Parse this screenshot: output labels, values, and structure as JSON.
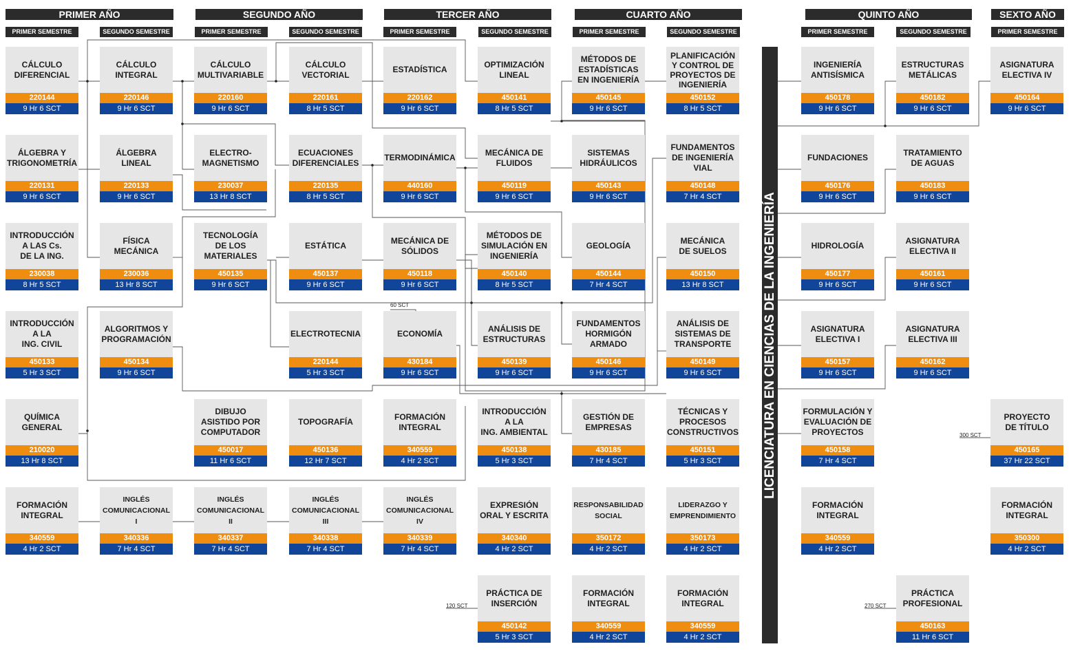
{
  "years": [
    {
      "label": "PRIMER AÑO"
    },
    {
      "label": "SEGUNDO AÑO"
    },
    {
      "label": "TERCER AÑO"
    },
    {
      "label": "CUARTO AÑO"
    },
    {
      "label": "QUINTO AÑO"
    },
    {
      "label": "SEXTO AÑO"
    }
  ],
  "semesters": [
    {
      "label": "PRIMER SEMESTRE"
    },
    {
      "label": "SEGUNDO SEMESTRE"
    },
    {
      "label": "PRIMER SEMESTRE"
    },
    {
      "label": "SEGUNDO SEMESTRE"
    },
    {
      "label": "PRIMER SEMESTRE"
    },
    {
      "label": "SEGUNDO SEMESTRE"
    },
    {
      "label": "PRIMER SEMESTRE"
    },
    {
      "label": "SEGUNDO SEMESTRE"
    },
    {
      "label": "PRIMER SEMESTRE"
    },
    {
      "label": "SEGUNDO SEMESTRE"
    },
    {
      "label": "PRIMER SEMESTRE"
    }
  ],
  "degree_label": "LICENCIATURA EN CIENCIAS DE LA INGENIERÍA",
  "notes": {
    "sct60": "60 SCT",
    "sct120": "120 SCT",
    "sct270": "270 SCT",
    "sct300": "300 SCT"
  },
  "colors": {
    "header": "#2b2b2b",
    "name_bg": "#e6e6e6",
    "code_bg": "#ef8d10",
    "hours_bg": "#11459a"
  },
  "courses": [
    {
      "name": "CÁLCULO\nDIFERENCIAL",
      "code": "220144",
      "hours": "9 Hr  6 SCT"
    },
    {
      "name": "ÁLGEBRA Y\nTRIGONOMETRÍA",
      "code": "220131",
      "hours": "9 Hr  6 SCT"
    },
    {
      "name": "INTRODUCCIÓN\nA LAS Cs.\nDE LA ING.",
      "code": "230038",
      "hours": "8 Hr  5 SCT"
    },
    {
      "name": "INTRODUCCIÓN\nA LA\nING. CIVIL",
      "code": "450133",
      "hours": "5 Hr  3 SCT"
    },
    {
      "name": "QUÍMICA\nGENERAL",
      "code": "210020",
      "hours": "13 Hr  8 SCT"
    },
    {
      "name": "FORMACIÓN\nINTEGRAL",
      "code": "340559",
      "hours": "4 Hr  2 SCT"
    },
    {
      "name": "CÁLCULO\nINTEGRAL",
      "code": "220146",
      "hours": "9 Hr  6 SCT"
    },
    {
      "name": "ÁLGEBRA\nLINEAL",
      "code": "220133",
      "hours": "9 Hr  6 SCT"
    },
    {
      "name": "FÍSICA\nMECÁNICA",
      "code": "230036",
      "hours": "13 Hr  8 SCT"
    },
    {
      "name": "ALGORITMOS Y\nPROGRAMACIÓN",
      "code": "450134",
      "hours": "9 Hr  6 SCT"
    },
    {
      "name": "INGLÉS\nCOMUNICACIONAL\nI",
      "code": "340336",
      "hours": "7 Hr  4 SCT"
    },
    {
      "name": "CÁLCULO\nMULTIVARIABLE",
      "code": "220160",
      "hours": "9 Hr  6 SCT"
    },
    {
      "name": "ELECTRO-\nMAGNETISMO",
      "code": "230037",
      "hours": "13 Hr  8 SCT"
    },
    {
      "name": "TECNOLOGÍA\nDE LOS\nMATERIALES",
      "code": "450135",
      "hours": "9 Hr  6 SCT"
    },
    {
      "name": "DIBUJO\nASISTIDO POR\nCOMPUTADOR",
      "code": "450017",
      "hours": "11 Hr  6 SCT"
    },
    {
      "name": "INGLÉS\nCOMUNICACIONAL\nII",
      "code": "340337",
      "hours": "7 Hr  4 SCT"
    },
    {
      "name": "CÁLCULO\nVECTORIAL",
      "code": "220161",
      "hours": "8 Hr  5 SCT"
    },
    {
      "name": "ECUACIONES\nDIFERENCIALES",
      "code": "220135",
      "hours": "8 Hr  5 SCT"
    },
    {
      "name": "ESTÁTICA",
      "code": "450137",
      "hours": "9 Hr  6 SCT"
    },
    {
      "name": "ELECTROTECNIA",
      "code": "220144",
      "hours": "5 Hr  3 SCT"
    },
    {
      "name": "TOPOGRAFÍA",
      "code": "450136",
      "hours": "12 Hr  7 SCT"
    },
    {
      "name": "INGLÉS\nCOMUNICACIONAL\nIII",
      "code": "340338",
      "hours": "7 Hr  4 SCT"
    },
    {
      "name": "ESTADÍSTICA",
      "code": "220162",
      "hours": "9 Hr  6 SCT"
    },
    {
      "name": "TERMODINÁMICA",
      "code": "440160",
      "hours": "9 Hr  6 SCT"
    },
    {
      "name": "MECÁNICA DE\nSÓLIDOS",
      "code": "450118",
      "hours": "9 Hr  6 SCT"
    },
    {
      "name": "ECONOMÍA",
      "code": "430184",
      "hours": "9 Hr  6 SCT"
    },
    {
      "name": "FORMACIÓN\nINTEGRAL",
      "code": "340559",
      "hours": "4 Hr  2 SCT"
    },
    {
      "name": "INGLÉS\nCOMUNICACIONAL\nIV",
      "code": "340339",
      "hours": "7 Hr  4 SCT"
    },
    {
      "name": "OPTIMIZACIÓN\nLINEAL",
      "code": "450141",
      "hours": "8 Hr  5 SCT"
    },
    {
      "name": "MECÁNICA DE\nFLUIDOS",
      "code": "450119",
      "hours": "9 Hr  6 SCT"
    },
    {
      "name": "MÉTODOS DE\nSIMULACIÓN EN\nINGENIERÍA",
      "code": "450140",
      "hours": "8 Hr  5 SCT"
    },
    {
      "name": "ANÁLISIS DE\nESTRUCTURAS",
      "code": "450139",
      "hours": "9 Hr  6 SCT"
    },
    {
      "name": "INTRODUCCIÓN\nA LA\nING. AMBIENTAL",
      "code": "450138",
      "hours": "5 Hr  3 SCT"
    },
    {
      "name": "EXPRESIÓN\nORAL Y ESCRITA",
      "code": "340340",
      "hours": "4 Hr  2 SCT"
    },
    {
      "name": "PRÁCTICA DE\nINSERCIÓN",
      "code": "450142",
      "hours": "5 Hr  3 SCT"
    },
    {
      "name": "MÉTODOS DE\nESTADÍSTICAS\nEN INGENIERÍA",
      "code": "450145",
      "hours": "9 Hr  6 SCT"
    },
    {
      "name": "SISTEMAS\nHIDRÁULICOS",
      "code": "450143",
      "hours": "9 Hr  6 SCT"
    },
    {
      "name": "GEOLOGÍA",
      "code": "450144",
      "hours": "7 Hr  4 SCT"
    },
    {
      "name": "FUNDAMENTOS\nHORMIGÓN\nARMADO",
      "code": "450146",
      "hours": "9 Hr  6 SCT"
    },
    {
      "name": "GESTIÓN DE\nEMPRESAS",
      "code": "430185",
      "hours": "7 Hr  4 SCT"
    },
    {
      "name": "RESPONSABILIDAD\nSOCIAL",
      "code": "350172",
      "hours": "4 Hr  2 SCT"
    },
    {
      "name": "FORMACIÓN\nINTEGRAL",
      "code": "340559",
      "hours": "4 Hr  2 SCT"
    },
    {
      "name": "PLANIFICACIÓN\nY CONTROL DE\nPROYECTOS DE\nINGENIERÍA",
      "code": "450152",
      "hours": "8 Hr  5 SCT"
    },
    {
      "name": "FUNDAMENTOS\nDE INGENIERÍA\nVIAL",
      "code": "450148",
      "hours": "7 Hr  4 SCT"
    },
    {
      "name": "MECÁNICA\nDE SUELOS",
      "code": "450150",
      "hours": "13 Hr  8 SCT"
    },
    {
      "name": "ANÁLISIS DE\nSISTEMAS DE\nTRANSPORTE",
      "code": "450149",
      "hours": "9 Hr  6 SCT"
    },
    {
      "name": "TÉCNICAS Y\nPROCESOS\nCONSTRUCTIVOS",
      "code": "450151",
      "hours": "5 Hr  3 SCT"
    },
    {
      "name": "LIDERAZGO Y\nEMPRENDIMIENTO",
      "code": "350173",
      "hours": "4 Hr  2 SCT"
    },
    {
      "name": "FORMACIÓN\nINTEGRAL",
      "code": "340559",
      "hours": "4 Hr  2 SCT"
    },
    {
      "name": "INGENIERÍA\nANTISÍSMICA",
      "code": "450178",
      "hours": "9 Hr  6 SCT"
    },
    {
      "name": "FUNDACIONES",
      "code": "450176",
      "hours": "9 Hr  6 SCT"
    },
    {
      "name": "HIDROLOGÍA",
      "code": "450177",
      "hours": "9 Hr  6 SCT"
    },
    {
      "name": "ASIGNATURA\nELECTIVA I",
      "code": "450157",
      "hours": "9 Hr  6 SCT"
    },
    {
      "name": "FORMULACIÓN Y\nEVALUACIÓN DE\nPROYECTOS",
      "code": "450158",
      "hours": "7 Hr  4 SCT"
    },
    {
      "name": "FORMACIÓN\nINTEGRAL",
      "code": "340559",
      "hours": "4 Hr  2 SCT"
    },
    {
      "name": "ESTRUCTURAS\nMETÁLICAS",
      "code": "450182",
      "hours": "9 Hr  6 SCT"
    },
    {
      "name": "TRATAMIENTO\nDE AGUAS",
      "code": "450183",
      "hours": "9 Hr  6 SCT"
    },
    {
      "name": "ASIGNATURA\nELECTIVA II",
      "code": "450161",
      "hours": "9 Hr  6 SCT"
    },
    {
      "name": "ASIGNATURA\nELECTIVA III",
      "code": "450162",
      "hours": "9 Hr  6 SCT"
    },
    {
      "name": "PRÁCTICA\nPROFESIONAL",
      "code": "450163",
      "hours": "11 Hr  6 SCT"
    },
    {
      "name": "ASIGNATURA\nELECTIVA IV",
      "code": "450164",
      "hours": "9 Hr  6 SCT"
    },
    {
      "name": "PROYECTO\nDE TÍTULO",
      "code": "450165",
      "hours": "37 Hr  22 SCT"
    },
    {
      "name": "FORMACIÓN\nINTEGRAL",
      "code": "350300",
      "hours": "4 Hr  2 SCT"
    }
  ]
}
